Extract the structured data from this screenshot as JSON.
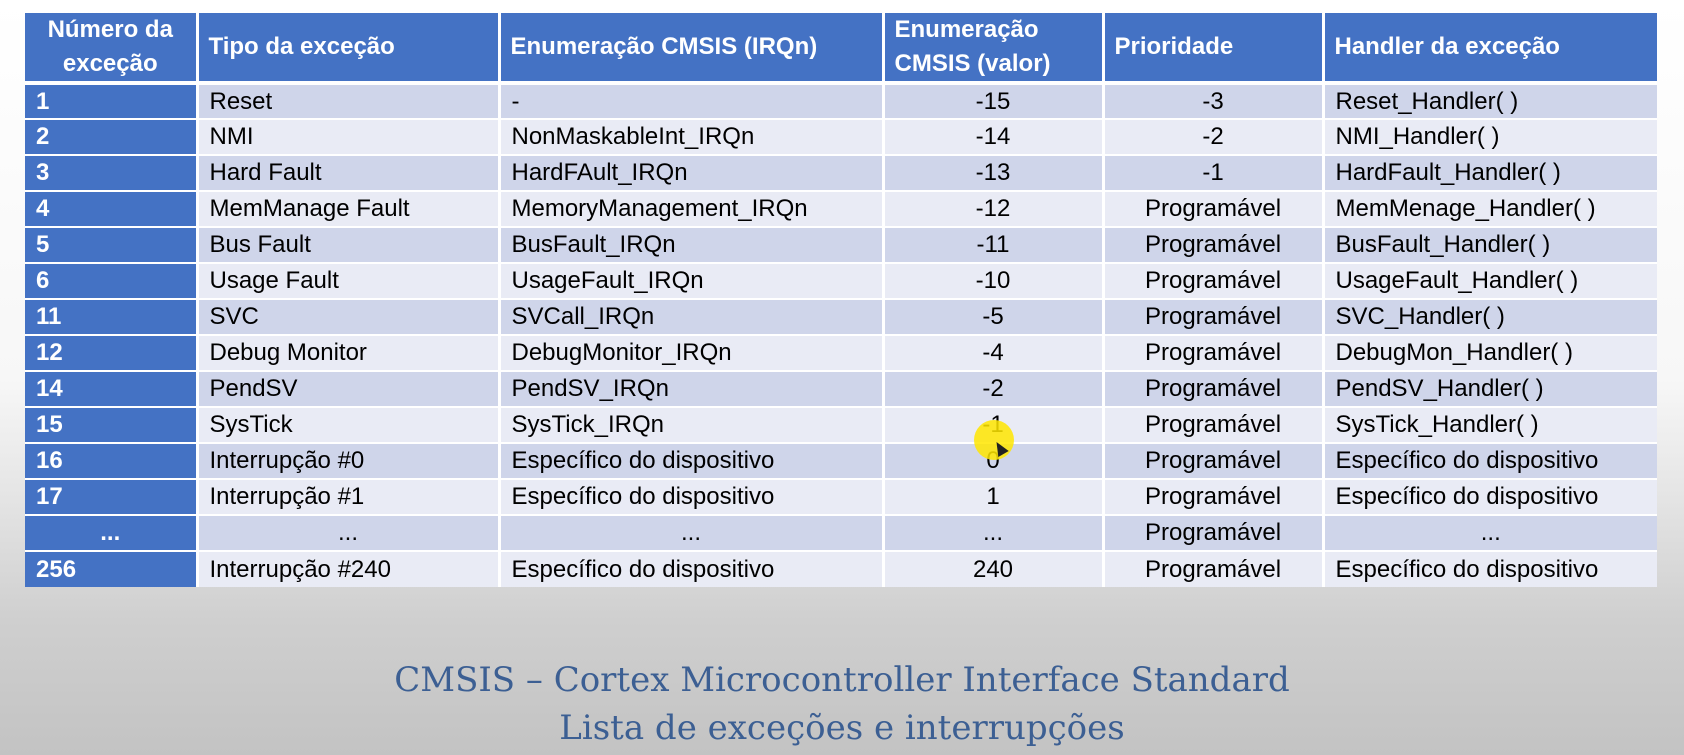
{
  "table": {
    "headers": [
      "Número da exceção",
      "Tipo da exceção",
      "Enumeração CMSIS (IRQn)",
      "Enumeração CMSIS (valor)",
      "Prioridade",
      "Handler da exceção"
    ],
    "rows": [
      {
        "num": "1",
        "type": "Reset",
        "enum": "-",
        "value": "-15",
        "priority": "-3",
        "handler": "Reset_Handler( )"
      },
      {
        "num": "2",
        "type": "NMI",
        "enum": "NonMaskableInt_IRQn",
        "value": "-14",
        "priority": "-2",
        "handler": "NMI_Handler( )"
      },
      {
        "num": "3",
        "type": "Hard Fault",
        "enum": "HardFAult_IRQn",
        "value": "-13",
        "priority": "-1",
        "handler": "HardFault_Handler( )"
      },
      {
        "num": "4",
        "type": "MemManage Fault",
        "enum": "MemoryManagement_IRQn",
        "value": "-12",
        "priority": "Programável",
        "handler": "MemMenage_Handler( )"
      },
      {
        "num": "5",
        "type": "Bus Fault",
        "enum": "BusFault_IRQn",
        "value": "-11",
        "priority": "Programável",
        "handler": "BusFault_Handler( )"
      },
      {
        "num": "6",
        "type": "Usage Fault",
        "enum": "UsageFault_IRQn",
        "value": "-10",
        "priority": "Programável",
        "handler": "UsageFault_Handler( )"
      },
      {
        "num": "11",
        "type": "SVC",
        "enum": "SVCall_IRQn",
        "value": "-5",
        "priority": "Programável",
        "handler": "SVC_Handler( )"
      },
      {
        "num": "12",
        "type": "Debug Monitor",
        "enum": "DebugMonitor_IRQn",
        "value": "-4",
        "priority": "Programável",
        "handler": "DebugMon_Handler( )"
      },
      {
        "num": "14",
        "type": "PendSV",
        "enum": "PendSV_IRQn",
        "value": "-2",
        "priority": "Programável",
        "handler": "PendSV_Handler( )"
      },
      {
        "num": "15",
        "type": "SysTick",
        "enum": "SysTick_IRQn",
        "value": "-1",
        "priority": "Programável",
        "handler": "SysTick_Handler( )"
      },
      {
        "num": "16",
        "type": "Interrupção #0",
        "enum": "Específico do dispositivo",
        "value": "0",
        "priority": "Programável",
        "handler": "Específico do dispositivo"
      },
      {
        "num": "17",
        "type": "Interrupção #1",
        "enum": "Específico do dispositivo",
        "value": "1",
        "priority": "Programável",
        "handler": "Específico do dispositivo"
      },
      {
        "num": "...",
        "type": "...",
        "enum": "...",
        "value": "...",
        "priority": "Programável",
        "handler": "..."
      },
      {
        "num": "256",
        "type": "Interrupção #240",
        "enum": "Específico do dispositivo",
        "value": "240",
        "priority": "Programável",
        "handler": "Específico do dispositivo"
      }
    ]
  },
  "caption": {
    "line1": "CMSIS – Cortex Microcontroller Interface Standard",
    "line2": "Lista de exceções e interrupções"
  },
  "colors": {
    "header_bg": "#4472c4",
    "row_odd": "#cfd5ea",
    "row_even": "#e9ebf5",
    "caption": "#3c5f93",
    "cursor_highlight": "#ffe600"
  }
}
